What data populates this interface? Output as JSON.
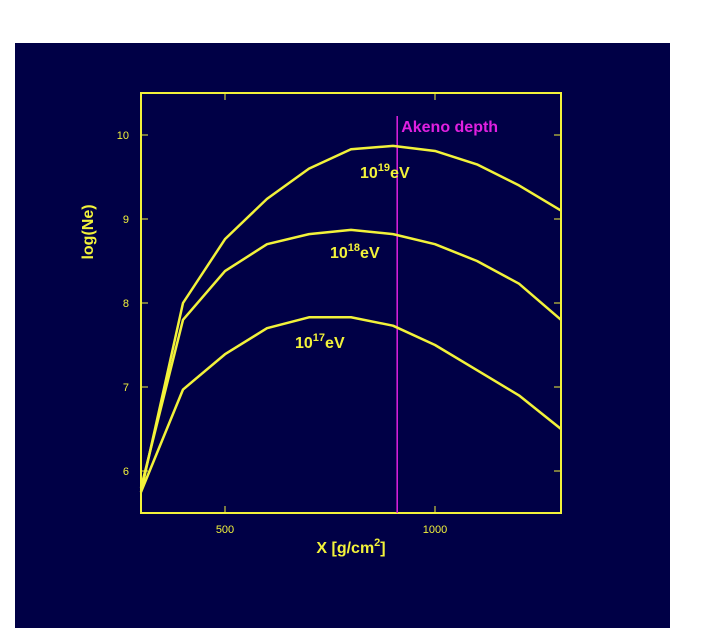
{
  "chart_data": {
    "type": "line",
    "x": [
      300,
      400,
      500,
      600,
      700,
      800,
      900,
      1000,
      1100,
      1200,
      1300
    ],
    "series": [
      {
        "label": {
          "base": "10",
          "exp": "19",
          "unit": "eV"
        },
        "color": "#f2f23a",
        "values": [
          5.75,
          8.0,
          8.76,
          9.24,
          9.6,
          9.83,
          9.87,
          9.81,
          9.65,
          9.4,
          9.1
        ]
      },
      {
        "label": {
          "base": "10",
          "exp": "18",
          "unit": "eV"
        },
        "color": "#f2f23a",
        "values": [
          5.8,
          7.8,
          8.38,
          8.7,
          8.82,
          8.87,
          8.82,
          8.7,
          8.5,
          8.23,
          7.8
        ]
      },
      {
        "label": {
          "base": "10",
          "exp": "17",
          "unit": "eV"
        },
        "color": "#f2f23a",
        "values": [
          5.75,
          6.97,
          7.39,
          7.7,
          7.83,
          7.83,
          7.73,
          7.5,
          7.2,
          6.9,
          6.5
        ]
      }
    ],
    "xlabel": {
      "text": "X [g/cm",
      "sup": "2",
      "end": "]"
    },
    "ylabel": "log(Ne)",
    "xlim": [
      300,
      1300
    ],
    "xticks": [
      500,
      1000
    ],
    "ylim": [
      5.5,
      10.5
    ],
    "yticks": [
      6,
      7,
      8,
      9,
      10
    ],
    "vline": {
      "x": 910,
      "label": "Akeno depth",
      "color": "#e020e0"
    }
  }
}
